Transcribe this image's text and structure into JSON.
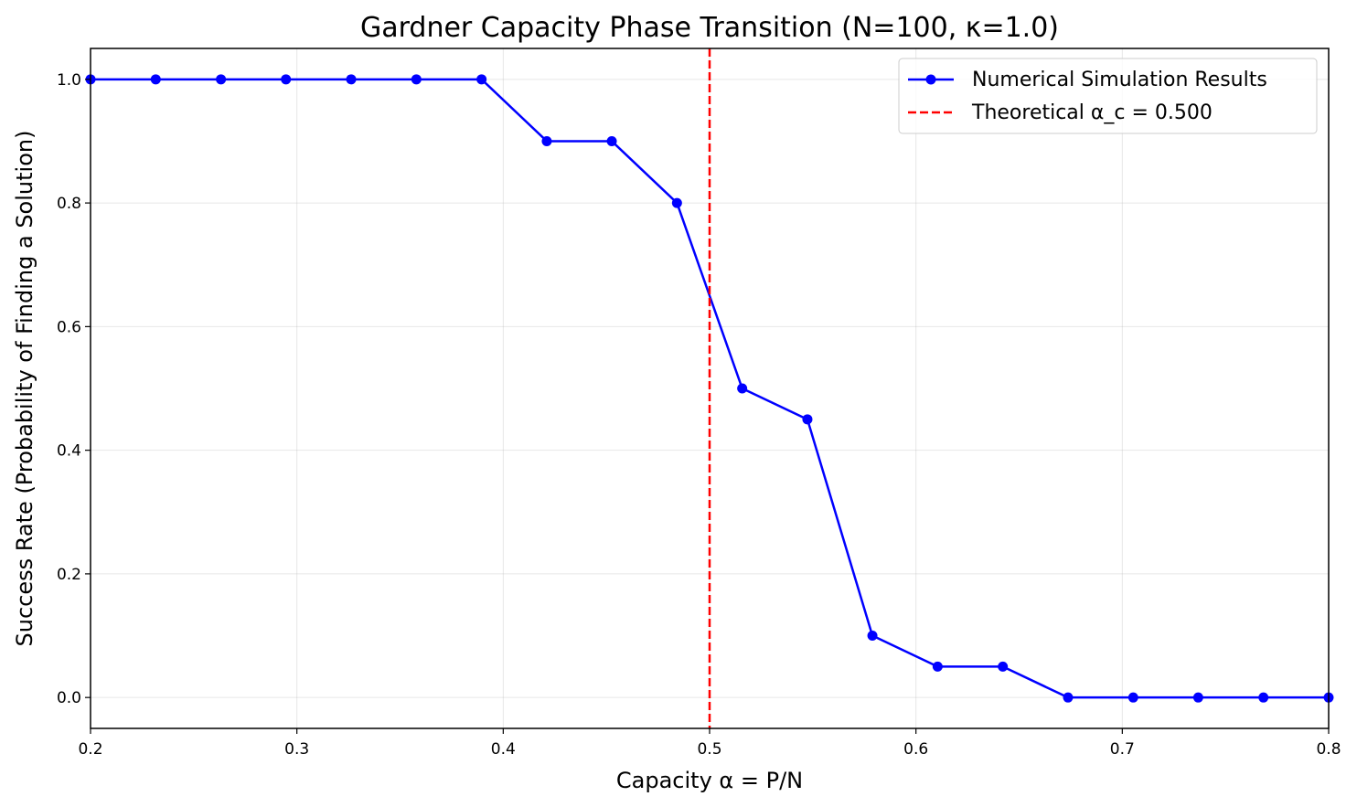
{
  "chart_data": {
    "type": "line",
    "title": "Gardner Capacity Phase Transition (N=100, κ=1.0)",
    "xlabel": "Capacity α = P/N",
    "ylabel": "Success Rate (Probability of Finding a Solution)",
    "xlim": [
      0.2,
      0.8
    ],
    "ylim": [
      -0.05,
      1.05
    ],
    "xticks": [
      0.2,
      0.3,
      0.4,
      0.5,
      0.6,
      0.7,
      0.8
    ],
    "xtick_labels": [
      "0.2",
      "0.3",
      "0.4",
      "0.5",
      "0.6",
      "0.7",
      "0.8"
    ],
    "yticks": [
      0.0,
      0.2,
      0.4,
      0.6,
      0.8,
      1.0
    ],
    "ytick_labels": [
      "0.0",
      "0.2",
      "0.4",
      "0.6",
      "0.8",
      "1.0"
    ],
    "grid": true,
    "legend_position": "top-right",
    "series": [
      {
        "name": "Numerical Simulation Results",
        "color": "#0000ff",
        "marker": "circle",
        "x": [
          0.2,
          0.2316,
          0.2632,
          0.2947,
          0.3263,
          0.3579,
          0.3895,
          0.4211,
          0.4526,
          0.4842,
          0.5158,
          0.5474,
          0.5789,
          0.6105,
          0.6421,
          0.6737,
          0.7053,
          0.7368,
          0.7684,
          0.8
        ],
        "y": [
          1.0,
          1.0,
          1.0,
          1.0,
          1.0,
          1.0,
          1.0,
          0.9,
          0.9,
          0.8,
          0.5,
          0.45,
          0.1,
          0.05,
          0.05,
          0.0,
          0.0,
          0.0,
          0.0,
          0.0
        ]
      }
    ],
    "reference_line": {
      "name": "Theoretical α_c = 0.500",
      "x": 0.5,
      "color": "#ff0000",
      "style": "dashed"
    }
  }
}
